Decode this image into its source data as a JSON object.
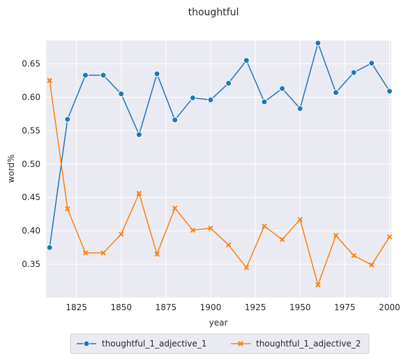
{
  "chart_data": {
    "type": "line",
    "title": "thoughtful",
    "xlabel": "year",
    "ylabel": "word%",
    "xlim": [
      1808,
      2001
    ],
    "ylim": [
      0.3,
      0.685
    ],
    "xticks": [
      1825,
      1850,
      1875,
      1900,
      1925,
      1950,
      1975,
      2000
    ],
    "yticks": [
      0.35,
      0.4,
      0.45,
      0.5,
      0.55,
      0.6,
      0.65
    ],
    "ytick_labels": [
      "0.35",
      "0.40",
      "0.45",
      "0.50",
      "0.55",
      "0.60",
      "0.65"
    ],
    "grid": true,
    "legend_position": "bottom-center",
    "x": [
      1810,
      1820,
      1830,
      1840,
      1850,
      1860,
      1870,
      1880,
      1890,
      1900,
      1910,
      1920,
      1930,
      1940,
      1950,
      1960,
      1970,
      1980,
      1990,
      2000
    ],
    "series": [
      {
        "name": "thoughtful_1_adjective_1",
        "color": "#1f77b4",
        "marker": "circle",
        "values": [
          0.375,
          0.567,
          0.633,
          0.633,
          0.605,
          0.544,
          0.635,
          0.566,
          0.599,
          0.596,
          0.621,
          0.655,
          0.593,
          0.613,
          0.583,
          0.681,
          0.607,
          0.637,
          0.651,
          0.609
        ]
      },
      {
        "name": "thoughtful_1_adjective_2",
        "color": "#ff7f0e",
        "marker": "x",
        "values": [
          0.625,
          0.433,
          0.367,
          0.367,
          0.395,
          0.456,
          0.365,
          0.434,
          0.401,
          0.404,
          0.379,
          0.345,
          0.407,
          0.387,
          0.417,
          0.319,
          0.393,
          0.363,
          0.349,
          0.391
        ]
      }
    ]
  }
}
